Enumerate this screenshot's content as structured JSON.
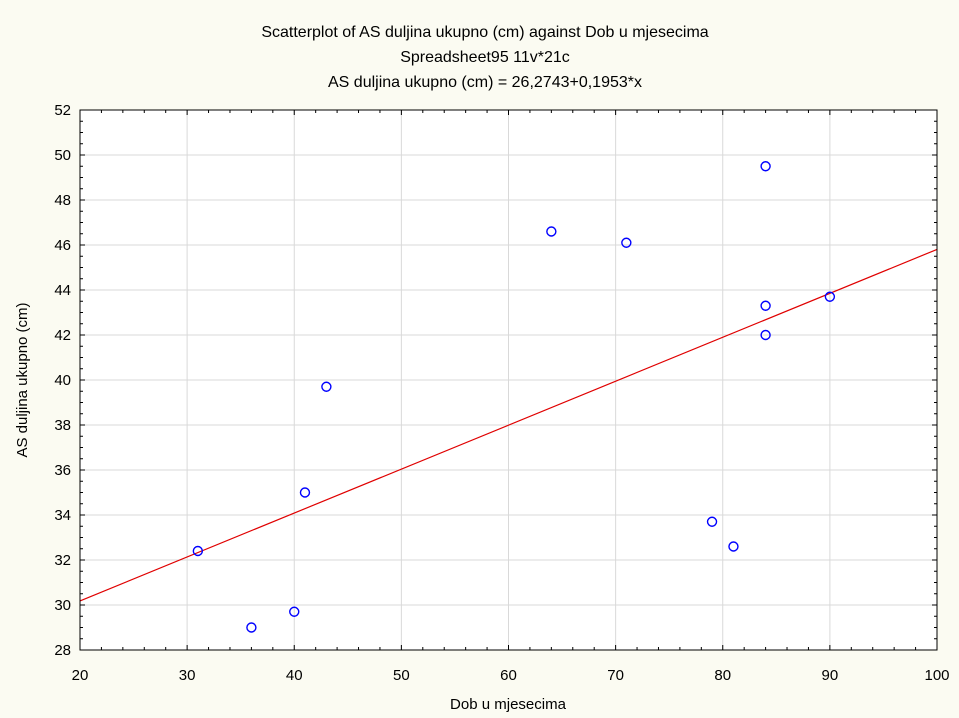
{
  "chart_data": {
    "type": "scatter",
    "title": "Scatterplot of AS duljina ukupno (cm) against Dob u mjesecima",
    "subtitle": "Spreadsheet95 11v*21c",
    "equation": "AS duljina ukupno (cm) = 26,2743+0,1953*x",
    "xlabel": "Dob u mjesecima",
    "ylabel": "AS duljina ukupno (cm)",
    "xlim": [
      20,
      100
    ],
    "ylim": [
      28,
      52
    ],
    "xticks": [
      20,
      30,
      40,
      50,
      60,
      70,
      80,
      90,
      100
    ],
    "yticks": [
      28,
      30,
      32,
      34,
      36,
      38,
      40,
      42,
      44,
      46,
      48,
      50,
      52
    ],
    "grid": true,
    "points": [
      {
        "x": 31,
        "y": 32.4
      },
      {
        "x": 36,
        "y": 29.0
      },
      {
        "x": 40,
        "y": 29.7
      },
      {
        "x": 41,
        "y": 35.0
      },
      {
        "x": 43,
        "y": 39.7
      },
      {
        "x": 64,
        "y": 46.6
      },
      {
        "x": 71,
        "y": 46.1
      },
      {
        "x": 79,
        "y": 33.7
      },
      {
        "x": 81,
        "y": 32.6
      },
      {
        "x": 84,
        "y": 49.5
      },
      {
        "x": 84,
        "y": 43.3
      },
      {
        "x": 84,
        "y": 42.0
      },
      {
        "x": 90,
        "y": 43.7
      }
    ],
    "fit_line": {
      "intercept": 26.2743,
      "slope": 0.1953
    },
    "colors": {
      "points": "#0000ff",
      "fit_line": "#e00000",
      "grid": "#d9d9d9",
      "background": "#fbfbf2",
      "plot_background": "#ffffff"
    }
  }
}
